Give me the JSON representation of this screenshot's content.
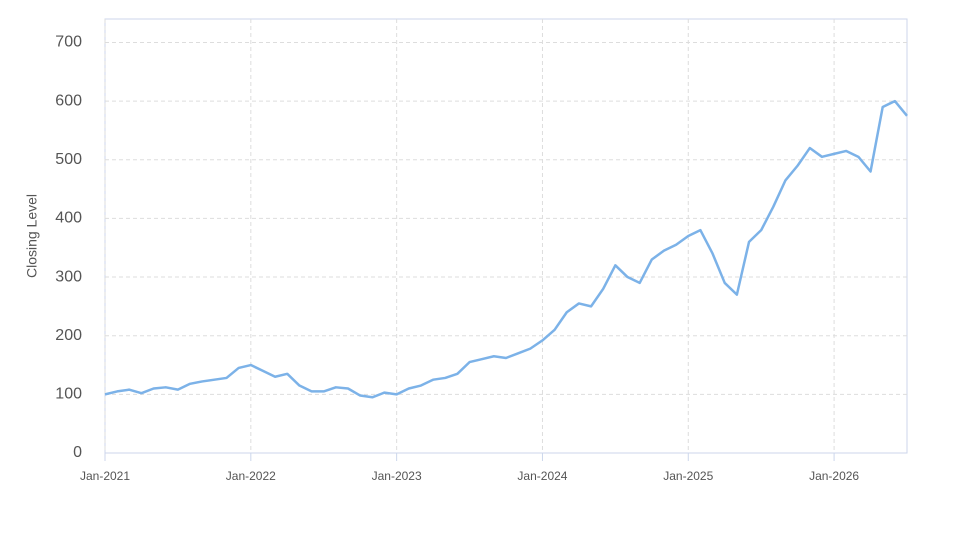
{
  "chart_data": {
    "type": "line",
    "y_label": "Closing Level",
    "x": [
      "2021-01",
      "2021-02",
      "2021-03",
      "2021-04",
      "2021-05",
      "2021-06",
      "2021-07",
      "2021-08",
      "2021-09",
      "2021-10",
      "2021-11",
      "2021-12",
      "2022-01",
      "2022-02",
      "2022-03",
      "2022-04",
      "2022-05",
      "2022-06",
      "2022-07",
      "2022-08",
      "2022-09",
      "2022-10",
      "2022-11",
      "2022-12",
      "2023-01",
      "2023-02",
      "2023-03",
      "2023-04",
      "2023-05",
      "2023-06",
      "2023-07",
      "2023-08",
      "2023-09",
      "2023-10",
      "2023-11",
      "2023-12",
      "2024-01",
      "2024-02",
      "2024-03",
      "2024-04",
      "2024-05",
      "2024-06",
      "2024-07",
      "2024-08",
      "2024-09",
      "2024-10",
      "2024-11",
      "2024-12",
      "2025-01",
      "2025-02",
      "2025-03",
      "2025-04",
      "2025-05",
      "2025-06",
      "2025-07",
      "2025-08",
      "2025-09",
      "2025-10",
      "2025-11",
      "2025-12",
      "2026-01",
      "2026-02",
      "2026-03",
      "2026-04",
      "2026-05",
      "2026-06",
      "2026-07"
    ],
    "series": [
      {
        "name": "Closing Level",
        "color": "#7cb2e8",
        "values": [
          100,
          105,
          108,
          102,
          110,
          112,
          108,
          118,
          122,
          125,
          128,
          145,
          150,
          140,
          130,
          135,
          115,
          105,
          105,
          112,
          110,
          98,
          95,
          103,
          100,
          110,
          115,
          125,
          128,
          135,
          155,
          160,
          165,
          162,
          170,
          178,
          192,
          210,
          240,
          255,
          250,
          280,
          320,
          300,
          290,
          330,
          345,
          355,
          370,
          380,
          340,
          290,
          270,
          360,
          380,
          420,
          465,
          490,
          520,
          505,
          510,
          515,
          505,
          480,
          590,
          600,
          575
        ]
      }
    ],
    "xlim": [
      "2021-01",
      "2026-07"
    ],
    "xticks": [
      {
        "value": "2021-01",
        "label": "Jan-2021"
      },
      {
        "value": "2022-01",
        "label": "Jan-2022"
      },
      {
        "value": "2023-01",
        "label": "Jan-2023"
      },
      {
        "value": "2024-01",
        "label": "Jan-2024"
      },
      {
        "value": "2025-01",
        "label": "Jan-2025"
      },
      {
        "value": "2026-01",
        "label": "Jan-2026"
      }
    ],
    "ylim": [
      0,
      740
    ],
    "yticks": [
      0,
      100,
      200,
      300,
      400,
      500,
      600,
      700
    ],
    "grid": true
  }
}
